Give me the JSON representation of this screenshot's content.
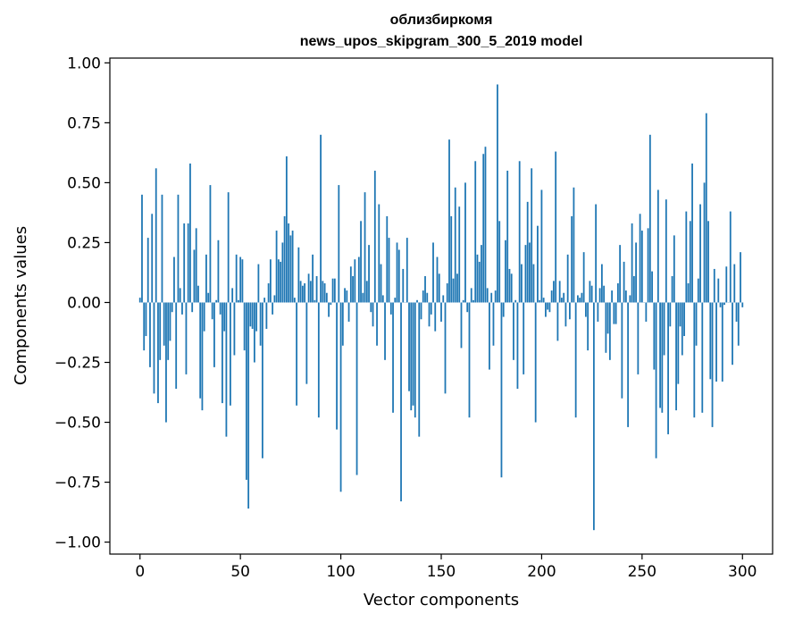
{
  "chart_data": {
    "type": "bar",
    "title": "облизбиркомя",
    "subtitle": "news_upos_skipgram_300_5_2019 model",
    "xlabel": "Vector components",
    "ylabel": "Components values",
    "xlim": [
      -15,
      315
    ],
    "ylim": [
      -1.05,
      1.02
    ],
    "xticks": [
      0,
      50,
      100,
      150,
      200,
      250,
      300
    ],
    "xtick_labels": [
      "0",
      "50",
      "100",
      "150",
      "200",
      "250",
      "300"
    ],
    "yticks": [
      -1.0,
      -0.75,
      -0.5,
      -0.25,
      0.0,
      0.25,
      0.5,
      0.75,
      1.0
    ],
    "ytick_labels": [
      "−1.00",
      "−0.75",
      "−0.50",
      "−0.25",
      "0.00",
      "0.25",
      "0.50",
      "0.75",
      "1.00"
    ],
    "grid": false,
    "color": "#1f77b4",
    "values": [
      0.02,
      0.45,
      -0.2,
      -0.14,
      0.27,
      -0.27,
      0.37,
      -0.38,
      0.56,
      -0.42,
      -0.24,
      0.45,
      -0.18,
      -0.5,
      -0.24,
      -0.16,
      -0.04,
      0.19,
      -0.36,
      0.45,
      0.06,
      -0.05,
      0.33,
      -0.3,
      0.33,
      0.58,
      -0.04,
      0.22,
      0.31,
      0.07,
      -0.4,
      -0.45,
      -0.12,
      0.2,
      0.04,
      0.49,
      -0.07,
      -0.27,
      0.01,
      0.26,
      -0.05,
      -0.42,
      -0.12,
      -0.56,
      0.46,
      -0.43,
      0.06,
      -0.22,
      0.2,
      0.01,
      0.19,
      0.18,
      -0.2,
      -0.74,
      -0.86,
      -0.1,
      -0.11,
      -0.25,
      -0.12,
      0.16,
      -0.18,
      -0.65,
      0.02,
      -0.11,
      0.08,
      0.18,
      -0.05,
      0.03,
      0.3,
      0.18,
      0.17,
      0.25,
      0.36,
      0.61,
      0.33,
      0.28,
      0.3,
      0.02,
      -0.43,
      0.23,
      0.09,
      0.07,
      0.08,
      -0.34,
      0.12,
      0.09,
      0.2,
      0.01,
      0.11,
      -0.48,
      0.7,
      0.09,
      0.08,
      0.04,
      -0.06,
      -0.01,
      0.1,
      0.1,
      -0.53,
      0.49,
      -0.79,
      -0.18,
      0.06,
      0.05,
      -0.08,
      0.15,
      0.11,
      0.18,
      -0.72,
      0.19,
      0.34,
      0.04,
      0.46,
      0.09,
      0.24,
      -0.04,
      -0.1,
      0.55,
      -0.18,
      0.41,
      0.16,
      0.03,
      -0.24,
      0.36,
      0.27,
      -0.05,
      -0.46,
      0.02,
      0.25,
      0.22,
      -0.83,
      0.14,
      0.0,
      0.27,
      -0.37,
      -0.45,
      -0.43,
      -0.48,
      0.01,
      -0.56,
      -0.07,
      0.05,
      0.11,
      0.04,
      -0.1,
      -0.05,
      0.25,
      -0.12,
      0.19,
      0.12,
      -0.08,
      0.03,
      -0.38,
      0.08,
      0.68,
      0.36,
      0.1,
      0.48,
      0.12,
      0.4,
      -0.19,
      0.01,
      0.5,
      -0.04,
      -0.48,
      0.06,
      0.01,
      0.59,
      0.2,
      0.17,
      0.24,
      0.62,
      0.65,
      0.06,
      -0.28,
      0.04,
      -0.18,
      0.05,
      0.91,
      0.34,
      -0.73,
      -0.06,
      0.26,
      0.55,
      0.14,
      0.12,
      -0.24,
      0.01,
      -0.36,
      0.59,
      0.16,
      -0.3,
      0.24,
      0.42,
      0.25,
      0.56,
      0.16,
      -0.5,
      0.32,
      0.01,
      0.47,
      0.02,
      -0.06,
      -0.03,
      -0.04,
      0.05,
      0.09,
      0.63,
      -0.16,
      0.09,
      0.02,
      0.04,
      -0.1,
      0.2,
      -0.07,
      0.36,
      0.48,
      -0.48,
      0.03,
      0.02,
      0.04,
      0.21,
      -0.06,
      -0.2,
      0.09,
      0.07,
      -0.95,
      0.41,
      -0.08,
      0.06,
      0.16,
      0.07,
      -0.21,
      -0.13,
      -0.24,
      0.05,
      -0.09,
      -0.09,
      0.08,
      0.24,
      -0.4,
      0.17,
      0.05,
      -0.52,
      0.03,
      0.33,
      0.11,
      0.25,
      -0.3,
      0.37,
      0.3,
      0.0,
      -0.08,
      0.31,
      0.7,
      0.13,
      -0.28,
      -0.65,
      0.47,
      -0.44,
      -0.46,
      -0.22,
      0.43,
      -0.55,
      -0.1,
      0.11,
      0.28,
      -0.45,
      -0.34,
      -0.1,
      -0.22,
      -0.14,
      0.38,
      0.08,
      0.34,
      0.58,
      -0.48,
      -0.18,
      0.1,
      0.41,
      -0.46,
      0.5,
      0.79,
      0.34,
      -0.32,
      -0.52,
      0.14,
      -0.33,
      0.1,
      -0.02,
      -0.33,
      -0.01,
      0.15,
      0.0,
      0.38,
      -0.26,
      0.16,
      -0.08,
      -0.18,
      0.21,
      -0.02
    ]
  }
}
